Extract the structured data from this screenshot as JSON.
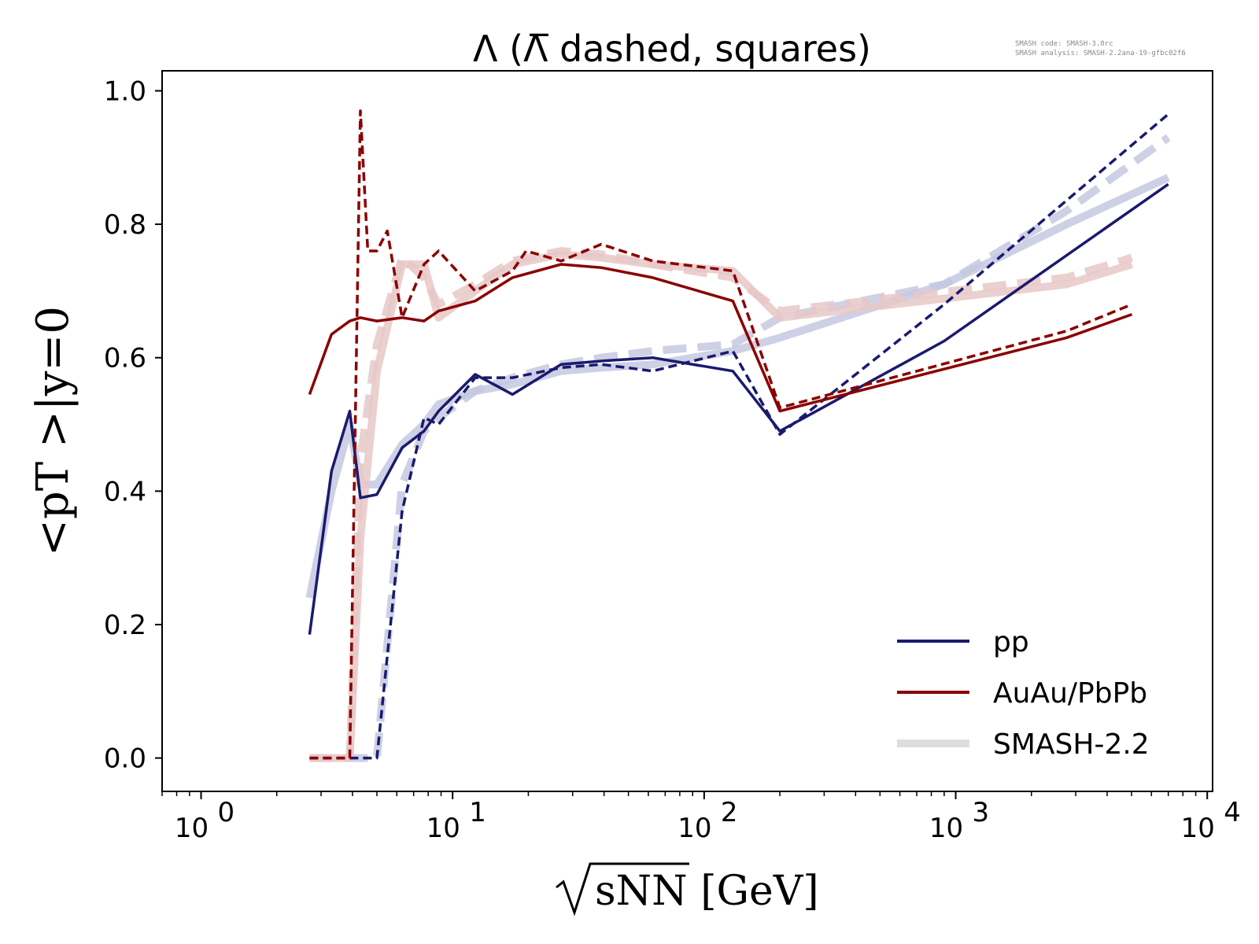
{
  "chart_data": {
    "type": "line",
    "title": "Λ (Λ̅ dashed, squares)",
    "xlabel": "sNN [GeV]",
    "ylabel": "<pT >|y=0",
    "xscale": "log",
    "xlim": [
      0.7,
      10500
    ],
    "ylim": [
      -0.05,
      1.03
    ],
    "x_ticks": [
      {
        "value": 1,
        "base": "10",
        "exp": "0"
      },
      {
        "value": 10,
        "base": "10",
        "exp": "1"
      },
      {
        "value": 100,
        "base": "10",
        "exp": "2"
      },
      {
        "value": 1000,
        "base": "10",
        "exp": "3"
      },
      {
        "value": 10000,
        "base": "10",
        "exp": "4"
      }
    ],
    "y_ticks": [
      {
        "value": 0.0,
        "label": "0.0"
      },
      {
        "value": 0.2,
        "label": "0.2"
      },
      {
        "value": 0.4,
        "label": "0.4"
      },
      {
        "value": 0.6,
        "label": "0.6"
      },
      {
        "value": 0.8,
        "label": "0.8"
      },
      {
        "value": 1.0,
        "label": "1.0"
      }
    ],
    "colors": {
      "pp": "#1a1a6e",
      "AuAu": "#8b0000",
      "ref_pp": "#c5c8e0",
      "ref_AuAu": "#e8c8c8",
      "legend_ref": "#dddddd"
    },
    "series": [
      {
        "name": "pp Λ (SMASH-2.2)",
        "group": "ref_pp",
        "style": "ref-solid",
        "x": [
          2.7,
          3.3,
          3.9,
          4.3,
          5.0,
          6.3,
          7.7,
          8.8,
          12.3,
          17.3,
          27,
          39,
          62.4,
          130,
          200,
          900,
          2760,
          7000
        ],
        "y": [
          0.24,
          0.4,
          0.5,
          0.41,
          0.41,
          0.47,
          0.5,
          0.53,
          0.55,
          0.56,
          0.58,
          0.585,
          0.59,
          0.61,
          0.63,
          0.71,
          0.8,
          0.87
        ]
      },
      {
        "name": "pp Λ̅ (SMASH-2.2)",
        "group": "ref_pp",
        "style": "ref-dashed",
        "x": [
          2.7,
          3.3,
          3.9,
          4.3,
          5.0,
          6.3,
          7.7,
          8.8,
          12.3,
          17.3,
          27,
          39,
          62.4,
          130,
          200,
          900,
          2760,
          7000
        ],
        "y": [
          0.0,
          0.0,
          0.0,
          0.0,
          0.0,
          0.41,
          0.49,
          0.51,
          0.55,
          0.57,
          0.59,
          0.6,
          0.61,
          0.62,
          0.66,
          0.71,
          0.82,
          0.93
        ]
      },
      {
        "name": "AuAu/PbPb Λ (SMASH-2.2)",
        "group": "ref_AuAu",
        "style": "ref-solid",
        "x": [
          2.7,
          3.3,
          3.9,
          4.3,
          5.0,
          6.3,
          7.7,
          8.8,
          12.3,
          17.3,
          27,
          39,
          62.4,
          130,
          200,
          2760,
          5020
        ],
        "y": [
          0.0,
          0.0,
          0.0,
          0.33,
          0.58,
          0.74,
          0.74,
          0.66,
          0.7,
          0.74,
          0.755,
          0.75,
          0.74,
          0.73,
          0.66,
          0.71,
          0.74
        ]
      },
      {
        "name": "AuAu/PbPb Λ̅ (SMASH-2.2)",
        "group": "ref_AuAu",
        "style": "ref-dashed",
        "x": [
          2.7,
          3.3,
          3.9,
          4.3,
          5.0,
          6.3,
          7.7,
          8.8,
          12.3,
          17.3,
          27,
          39,
          62.4,
          130,
          200,
          2760,
          5020
        ],
        "y": [
          0.0,
          0.0,
          0.0,
          0.45,
          0.62,
          0.75,
          0.72,
          0.68,
          0.71,
          0.745,
          0.76,
          0.755,
          0.74,
          0.72,
          0.67,
          0.72,
          0.75
        ]
      },
      {
        "name": "pp",
        "group": "pp",
        "style": "solid",
        "x": [
          2.7,
          3.3,
          3.9,
          4.3,
          5.0,
          6.3,
          7.7,
          8.8,
          12.3,
          17.3,
          27,
          39,
          62.4,
          130,
          200,
          900,
          7000
        ],
        "y": [
          0.185,
          0.43,
          0.52,
          0.39,
          0.395,
          0.465,
          0.49,
          0.52,
          0.575,
          0.545,
          0.59,
          0.595,
          0.6,
          0.58,
          0.49,
          0.625,
          0.86
        ]
      },
      {
        "name": "pp Λ̅",
        "group": "pp",
        "style": "dashed",
        "x": [
          2.7,
          3.3,
          3.9,
          4.3,
          5.0,
          6.3,
          7.7,
          8.8,
          12.3,
          17.3,
          27,
          39,
          62.4,
          130,
          200,
          900,
          7000
        ],
        "y": [
          0.0,
          0.0,
          0.0,
          0.0,
          0.0,
          0.37,
          0.51,
          0.5,
          0.57,
          0.57,
          0.585,
          0.59,
          0.58,
          0.61,
          0.485,
          0.68,
          0.965
        ]
      },
      {
        "name": "AuAu/PbPb",
        "group": "AuAu",
        "style": "solid",
        "x": [
          2.7,
          3.3,
          3.9,
          4.3,
          5.0,
          6.3,
          7.7,
          8.8,
          12.3,
          17.3,
          27,
          39,
          62.4,
          130,
          200,
          2760,
          5020
        ],
        "y": [
          0.545,
          0.635,
          0.655,
          0.66,
          0.655,
          0.66,
          0.655,
          0.67,
          0.685,
          0.72,
          0.74,
          0.735,
          0.72,
          0.685,
          0.52,
          0.63,
          0.665
        ]
      },
      {
        "name": "AuAu/PbPb Λ̅",
        "group": "AuAu",
        "style": "dashed",
        "x": [
          2.7,
          3.3,
          3.9,
          4.3,
          4.6,
          5.0,
          5.5,
          6.3,
          7.7,
          8.8,
          12.3,
          17.3,
          19.6,
          27,
          39,
          62.4,
          130,
          200,
          2760,
          5020
        ],
        "y": [
          0.0,
          0.0,
          0.0,
          0.97,
          0.76,
          0.76,
          0.79,
          0.66,
          0.74,
          0.76,
          0.7,
          0.73,
          0.76,
          0.745,
          0.77,
          0.745,
          0.73,
          0.525,
          0.64,
          0.68
        ]
      }
    ],
    "legend": {
      "position": "lower right",
      "entries": [
        {
          "label": "pp",
          "key": "pp"
        },
        {
          "label": "AuAu/PbPb",
          "key": "AuAu"
        },
        {
          "label": "SMASH-2.2",
          "key": "legend_ref"
        }
      ]
    }
  },
  "watermark": {
    "line1": "SMASH code:      SMASH-3.0rc",
    "line2": "SMASH analysis:  SMASH-2.2ana-19-gfbc02f6"
  }
}
